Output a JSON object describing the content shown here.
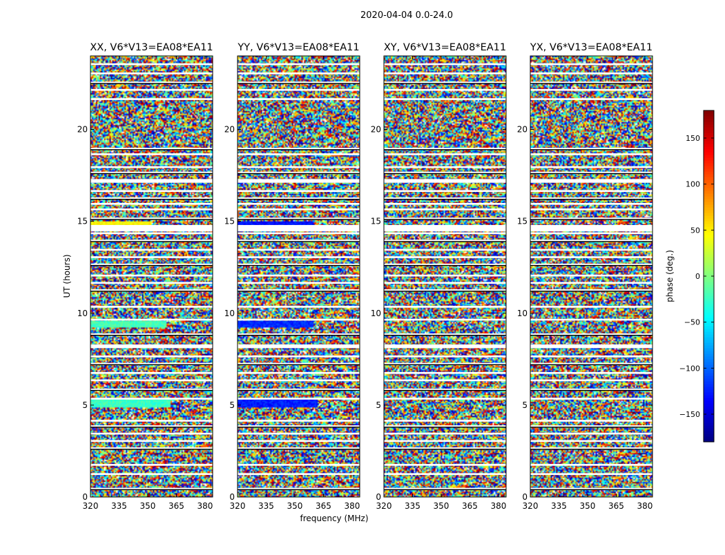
{
  "figure": {
    "suptitle": "2020-04-04 0.0-24.0",
    "xlabel": "frequency (MHz)",
    "ylabel": "UT (hours)"
  },
  "colorbar": {
    "label": "phase (deg.)",
    "range": [
      -180,
      180
    ],
    "ticks": [
      -150,
      -100,
      -50,
      0,
      50,
      100,
      150
    ],
    "colormap": "jet"
  },
  "chart_data": [
    {
      "type": "heatmap",
      "title": "XX, V6*V13=EA08*EA11",
      "x_range": [
        320,
        384
      ],
      "y_range": [
        0,
        24
      ],
      "x_ticks": [
        320,
        335,
        350,
        365,
        380
      ],
      "y_ticks": [
        0,
        5,
        10,
        15,
        20
      ],
      "value_quantity": "phase (deg.)",
      "approx_coherent_features": [
        {
          "ut_hours": [
            9.2,
            9.6
          ],
          "freq_mhz": [
            320,
            360
          ],
          "phase_deg": -20
        },
        {
          "ut_hours": [
            4.9,
            5.3
          ],
          "freq_mhz": [
            320,
            362
          ],
          "phase_deg": -25
        },
        {
          "ut_hours": [
            14.8,
            15.0
          ],
          "freq_mhz": [
            320,
            352
          ],
          "phase_deg": 45
        }
      ]
    },
    {
      "type": "heatmap",
      "title": "YY, V6*V13=EA08*EA11",
      "x_range": [
        320,
        384
      ],
      "y_range": [
        0,
        24
      ],
      "x_ticks": [
        320,
        335,
        350,
        365,
        380
      ],
      "y_ticks": [
        0,
        5,
        10,
        15,
        20
      ],
      "value_quantity": "phase (deg.)",
      "approx_coherent_features": [
        {
          "ut_hours": [
            9.2,
            9.6
          ],
          "freq_mhz": [
            320,
            360
          ],
          "phase_deg": -120
        },
        {
          "ut_hours": [
            4.9,
            5.3
          ],
          "freq_mhz": [
            320,
            362
          ],
          "phase_deg": -125
        },
        {
          "ut_hours": [
            14.8,
            15.0
          ],
          "freq_mhz": [
            320,
            360
          ],
          "phase_deg": -130
        }
      ]
    },
    {
      "type": "heatmap",
      "title": "XY, V6*V13=EA08*EA11",
      "x_range": [
        320,
        384
      ],
      "y_range": [
        0,
        24
      ],
      "x_ticks": [
        320,
        335,
        350,
        365,
        380
      ],
      "y_ticks": [
        0,
        5,
        10,
        15,
        20
      ],
      "value_quantity": "phase (deg.)",
      "approx_coherent_features": []
    },
    {
      "type": "heatmap",
      "title": "YX, V6*V13=EA08*EA11",
      "x_range": [
        320,
        384
      ],
      "y_range": [
        0,
        24
      ],
      "x_ticks": [
        320,
        335,
        350,
        365,
        380
      ],
      "y_ticks": [
        0,
        5,
        10,
        15,
        20
      ],
      "value_quantity": "phase (deg.)",
      "approx_coherent_features": []
    }
  ],
  "flagged_ut_hours": [
    [
      0.4,
      0.5
    ],
    [
      1.2,
      1.3
    ],
    [
      1.7,
      1.8
    ],
    [
      2.6,
      2.7
    ],
    [
      3.0,
      3.1
    ],
    [
      3.4,
      3.5
    ],
    [
      3.8,
      3.9
    ],
    [
      4.1,
      4.2
    ],
    [
      5.3,
      5.4
    ],
    [
      5.8,
      5.9
    ],
    [
      6.3,
      6.4
    ],
    [
      6.7,
      6.8
    ],
    [
      7.2,
      7.3
    ],
    [
      7.6,
      7.7
    ],
    [
      8.1,
      8.3
    ],
    [
      8.8,
      8.9
    ],
    [
      9.6,
      9.7
    ],
    [
      10.3,
      10.4
    ],
    [
      11.2,
      11.3
    ],
    [
      11.6,
      11.7
    ],
    [
      12.0,
      12.1
    ],
    [
      12.6,
      12.7
    ],
    [
      13.0,
      13.1
    ],
    [
      13.4,
      13.5
    ],
    [
      13.9,
      14.0
    ],
    [
      14.3,
      14.4
    ],
    [
      14.6,
      14.8
    ],
    [
      15.1,
      15.2
    ],
    [
      15.6,
      15.7
    ],
    [
      15.9,
      16.0
    ],
    [
      16.2,
      16.3
    ],
    [
      16.6,
      16.7
    ],
    [
      17.1,
      17.3
    ],
    [
      17.6,
      17.7
    ],
    [
      17.9,
      18.0
    ],
    [
      18.6,
      18.7
    ],
    [
      18.9,
      19.0
    ],
    [
      21.6,
      21.7
    ],
    [
      22.1,
      22.2
    ],
    [
      22.5,
      22.6
    ],
    [
      23.0,
      23.1
    ],
    [
      23.5,
      23.6
    ]
  ]
}
